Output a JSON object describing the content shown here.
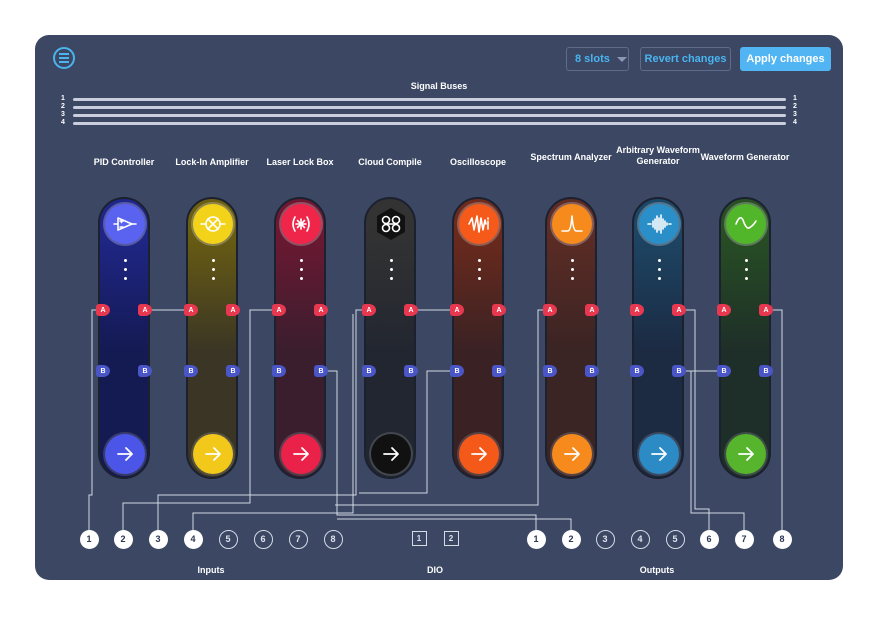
{
  "toolbar": {
    "slots_label": "8 slots",
    "revert_label": "Revert changes",
    "apply_label": "Apply changes",
    "menu_icon": "menu-icon",
    "accent": "#49b4f0",
    "apply_bg": "#50b5f2"
  },
  "signal_buses": {
    "title": "Signal Buses",
    "left_numbers": [
      "1",
      "2",
      "3",
      "4"
    ],
    "right_numbers": [
      "1",
      "2",
      "3",
      "4"
    ]
  },
  "instruments": [
    {
      "name": "PID Controller",
      "icon": "pid-icon",
      "top": "#5a62f0",
      "bottom": "#141a52",
      "mid": "#20278a",
      "arrow": "#4b56e8",
      "port_a": "A",
      "port_b": "B"
    },
    {
      "name": "Lock-In Amplifier",
      "icon": "lockin-icon",
      "top": "#f2d31a",
      "bottom": "#3a3524",
      "mid": "#6c5f12",
      "arrow": "#f2c81a",
      "port_a": "A",
      "port_b": "B"
    },
    {
      "name": "Laser Lock Box",
      "icon": "laser-icon",
      "top": "#f0254a",
      "bottom": "#3a1e2e",
      "mid": "#6e1832",
      "arrow": "#ea2148",
      "port_a": "A",
      "port_b": "B"
    },
    {
      "name": "Cloud Compile",
      "icon": "cloud-compile-icon",
      "top": "#222222",
      "bottom": "#222630",
      "mid": "#333",
      "arrow": "#111111",
      "port_a": "A",
      "port_b": "B"
    },
    {
      "name": "Oscilloscope",
      "icon": "oscilloscope-icon",
      "top": "#f65a1a",
      "bottom": "#3a2224",
      "mid": "#6e2a1c",
      "arrow": "#f5591a",
      "port_a": "A",
      "port_b": "B"
    },
    {
      "name": "Spectrum Analyzer",
      "icon": "spectrum-icon",
      "top": "#f78a1d",
      "bottom": "#3a2424",
      "mid": "#5e2c24",
      "arrow": "#f78a1d",
      "port_a": "A",
      "port_b": "B"
    },
    {
      "name": "Arbitrary Waveform Generator",
      "icon": "awg-icon",
      "top": "#2a8fc8",
      "bottom": "#1c2a42",
      "mid": "#1d4766",
      "arrow": "#2c8ac4",
      "port_a": "A",
      "port_b": "B"
    },
    {
      "name": "Waveform Generator",
      "icon": "sine-icon",
      "top": "#52b62a",
      "bottom": "#1e2e28",
      "mid": "#285024",
      "arrow": "#56b52c",
      "port_a": "A",
      "port_b": "B"
    }
  ],
  "inputs": {
    "label": "Inputs",
    "items": [
      {
        "n": "1",
        "on": true
      },
      {
        "n": "2",
        "on": true
      },
      {
        "n": "3",
        "on": true
      },
      {
        "n": "4",
        "on": true
      },
      {
        "n": "5",
        "on": false
      },
      {
        "n": "6",
        "on": false
      },
      {
        "n": "7",
        "on": false
      },
      {
        "n": "8",
        "on": false
      }
    ]
  },
  "dio": {
    "label": "DIO",
    "items": [
      "1",
      "2"
    ]
  },
  "outputs": {
    "label": "Outputs",
    "items": [
      {
        "n": "1",
        "on": true
      },
      {
        "n": "2",
        "on": true
      },
      {
        "n": "3",
        "on": false
      },
      {
        "n": "4",
        "on": false
      },
      {
        "n": "5",
        "on": false
      },
      {
        "n": "6",
        "on": true
      },
      {
        "n": "7",
        "on": true
      },
      {
        "n": "8",
        "on": true
      }
    ]
  }
}
